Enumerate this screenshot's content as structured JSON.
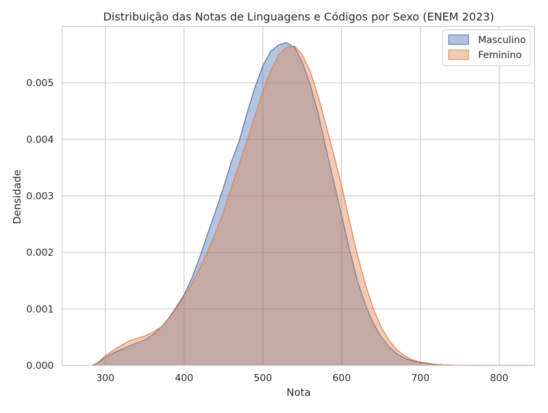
{
  "chart_data": {
    "type": "area",
    "title": "Distribuição das Notas de Linguagens e Códigos por Sexo (ENEM 2023)",
    "xlabel": "Nota",
    "ylabel": "Densidade",
    "xlim": [
      245,
      845
    ],
    "ylim": [
      0,
      0.006
    ],
    "xticks": [
      300,
      400,
      500,
      600,
      700,
      800
    ],
    "yticks": [
      0.0,
      0.001,
      0.002,
      0.003,
      0.004,
      0.005
    ],
    "ytick_labels": [
      "0.000",
      "0.001",
      "0.002",
      "0.003",
      "0.004",
      "0.005"
    ],
    "grid": true,
    "legend_position": "top-right",
    "series": [
      {
        "name": "Masculino",
        "color": "#4c72b0",
        "fill_color": "#b2c1dc",
        "x": [
          283,
          290,
          300,
          310,
          320,
          330,
          340,
          350,
          360,
          370,
          380,
          390,
          400,
          410,
          420,
          430,
          440,
          450,
          460,
          470,
          480,
          490,
          500,
          510,
          520,
          530,
          540,
          550,
          560,
          570,
          580,
          590,
          600,
          610,
          620,
          630,
          640,
          650,
          660,
          670,
          680,
          690,
          700,
          710,
          720,
          730,
          740,
          760,
          780,
          800,
          836
        ],
        "y": [
          0.0,
          4e-05,
          0.00014,
          0.00022,
          0.00028,
          0.00034,
          0.0004,
          0.00045,
          0.00054,
          0.00067,
          0.00083,
          0.00103,
          0.00125,
          0.00155,
          0.00192,
          0.00233,
          0.00273,
          0.00315,
          0.0036,
          0.00397,
          0.00447,
          0.00492,
          0.0053,
          0.00556,
          0.00567,
          0.00571,
          0.00563,
          0.00537,
          0.00497,
          0.00447,
          0.00385,
          0.00325,
          0.00265,
          0.00205,
          0.0015,
          0.00108,
          0.00075,
          0.00051,
          0.00033,
          0.00021,
          0.00013,
          8e-05,
          5e-05,
          3e-05,
          2e-05,
          1e-05,
          5e-06,
          2e-06,
          1e-06,
          0.0,
          0.0
        ]
      },
      {
        "name": "Feminino",
        "color": "#dd8452",
        "fill_color": "#f2c9b3",
        "x": [
          283,
          290,
          300,
          310,
          320,
          330,
          340,
          350,
          360,
          370,
          380,
          390,
          400,
          410,
          420,
          430,
          440,
          450,
          460,
          470,
          480,
          490,
          500,
          510,
          520,
          530,
          540,
          550,
          560,
          570,
          580,
          590,
          600,
          610,
          620,
          630,
          640,
          650,
          660,
          670,
          680,
          690,
          700,
          710,
          720,
          730,
          740,
          760,
          780,
          800,
          836
        ],
        "y": [
          0.0,
          5e-05,
          0.00017,
          0.00027,
          0.00035,
          0.00043,
          0.00048,
          0.00052,
          0.00059,
          0.00067,
          0.00082,
          0.001,
          0.00122,
          0.00145,
          0.00172,
          0.00202,
          0.00235,
          0.00272,
          0.00315,
          0.00356,
          0.00398,
          0.00442,
          0.00485,
          0.00522,
          0.00549,
          0.00563,
          0.00565,
          0.0055,
          0.00521,
          0.00477,
          0.00426,
          0.00373,
          0.00318,
          0.00255,
          0.00196,
          0.00144,
          0.00101,
          0.00068,
          0.00045,
          0.00028,
          0.00017,
          0.0001,
          6e-05,
          4e-05,
          2e-05,
          1e-05,
          6e-06,
          2e-06,
          1e-06,
          0.0,
          0.0
        ]
      }
    ]
  }
}
